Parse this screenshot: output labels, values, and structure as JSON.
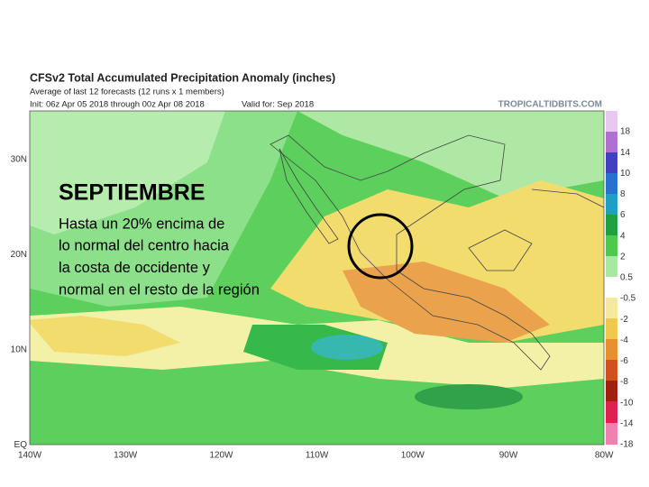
{
  "header": {
    "title": "CFSv2 Total Accumulated Precipitation Anomaly (inches)",
    "subtitle": "Average of last 12 forecasts (12 runs x 1 members)",
    "init": "Init: 06z Apr 05 2018 through 00z Apr 08 2018",
    "valid": "Valid for: Sep 2018",
    "brand": "TROPICALTIDBITS.COM"
  },
  "overlay": {
    "heading": "SEPTIEMBRE",
    "lines": [
      "Hasta un 20% encima de",
      "lo normal del centro hacia",
      "la costa de occidente y",
      "normal en el resto de la región"
    ]
  },
  "latitude_labels": [
    "30N",
    "20N",
    "10N",
    "EQ"
  ],
  "longitude_labels": [
    "140W",
    "130W",
    "120W",
    "110W",
    "100W",
    "90W",
    "80W"
  ],
  "colorbar_labels": [
    "18",
    "14",
    "10",
    "8",
    "6",
    "4",
    "2",
    "0.5",
    "-0.5",
    "-2",
    "-4",
    "-6",
    "-8",
    "-10",
    "-14",
    "-18"
  ]
}
